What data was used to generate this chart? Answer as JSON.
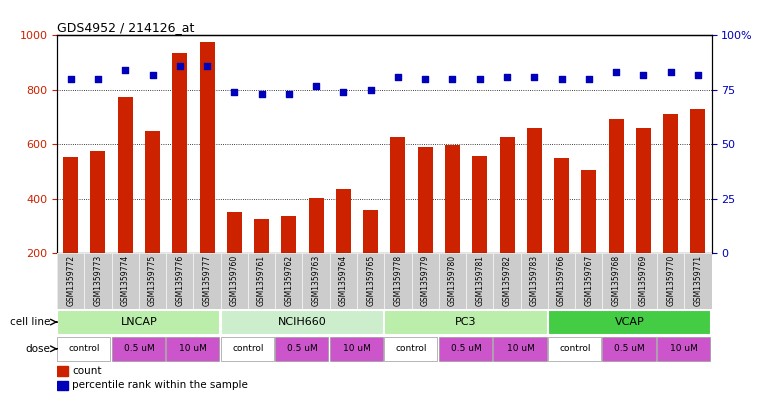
{
  "title": "GDS4952 / 214126_at",
  "samples": [
    "GSM1359772",
    "GSM1359773",
    "GSM1359774",
    "GSM1359775",
    "GSM1359776",
    "GSM1359777",
    "GSM1359760",
    "GSM1359761",
    "GSM1359762",
    "GSM1359763",
    "GSM1359764",
    "GSM1359765",
    "GSM1359778",
    "GSM1359779",
    "GSM1359780",
    "GSM1359781",
    "GSM1359782",
    "GSM1359783",
    "GSM1359766",
    "GSM1359767",
    "GSM1359768",
    "GSM1359769",
    "GSM1359770",
    "GSM1359771"
  ],
  "counts": [
    555,
    575,
    775,
    648,
    935,
    975,
    352,
    325,
    338,
    405,
    435,
    360,
    628,
    590,
    598,
    557,
    628,
    660,
    552,
    505,
    695,
    660,
    710,
    730
  ],
  "percentile_ranks": [
    80,
    80,
    84,
    82,
    86,
    86,
    74,
    73,
    73,
    77,
    74,
    75,
    81,
    80,
    80,
    80,
    81,
    81,
    80,
    80,
    83,
    82,
    83,
    82
  ],
  "cell_lines": [
    {
      "name": "LNCAP",
      "start": 0,
      "end": 6,
      "color": "#bbeeaa"
    },
    {
      "name": "NCIH660",
      "start": 6,
      "end": 12,
      "color": "#cceecc"
    },
    {
      "name": "PC3",
      "start": 12,
      "end": 18,
      "color": "#bbeeaa"
    },
    {
      "name": "VCAP",
      "start": 18,
      "end": 24,
      "color": "#44cc44"
    }
  ],
  "doses": [
    {
      "label": "control",
      "start": 0,
      "end": 2,
      "color": "#ffffff"
    },
    {
      "label": "0.5 uM",
      "start": 2,
      "end": 4,
      "color": "#dd77dd"
    },
    {
      "label": "10 uM",
      "start": 4,
      "end": 6,
      "color": "#dd77dd"
    },
    {
      "label": "control",
      "start": 6,
      "end": 8,
      "color": "#ffffff"
    },
    {
      "label": "0.5 uM",
      "start": 8,
      "end": 10,
      "color": "#dd77dd"
    },
    {
      "label": "10 uM",
      "start": 10,
      "end": 12,
      "color": "#dd77dd"
    },
    {
      "label": "control",
      "start": 12,
      "end": 14,
      "color": "#ffffff"
    },
    {
      "label": "0.5 uM",
      "start": 14,
      "end": 16,
      "color": "#dd77dd"
    },
    {
      "label": "10 uM",
      "start": 16,
      "end": 18,
      "color": "#dd77dd"
    },
    {
      "label": "control",
      "start": 18,
      "end": 20,
      "color": "#ffffff"
    },
    {
      "label": "0.5 uM",
      "start": 20,
      "end": 22,
      "color": "#dd77dd"
    },
    {
      "label": "10 uM",
      "start": 22,
      "end": 24,
      "color": "#dd77dd"
    }
  ],
  "dose_groups": [
    {
      "label": "control",
      "indices": [
        0,
        1
      ]
    },
    {
      "label": "0.5 uM",
      "indices": [
        2,
        3
      ]
    },
    {
      "label": "10 uM",
      "indices": [
        4,
        5
      ]
    },
    {
      "label": "control",
      "indices": [
        6,
        7
      ]
    },
    {
      "label": "0.5 uM",
      "indices": [
        8,
        9
      ]
    },
    {
      "label": "10 uM",
      "indices": [
        10,
        11
      ]
    },
    {
      "label": "control",
      "indices": [
        12,
        13
      ]
    },
    {
      "label": "0.5 uM",
      "indices": [
        14,
        15
      ]
    },
    {
      "label": "10 uM",
      "indices": [
        16,
        17
      ]
    },
    {
      "label": "control",
      "indices": [
        18,
        19
      ]
    },
    {
      "label": "0.5 uM",
      "indices": [
        20,
        21
      ]
    },
    {
      "label": "10 uM",
      "indices": [
        22,
        23
      ]
    }
  ],
  "bar_color": "#cc2200",
  "dot_color": "#0000bb",
  "ylim_left": [
    200,
    1000
  ],
  "ylim_right": [
    0,
    100
  ],
  "yticks_left": [
    200,
    400,
    600,
    800,
    1000
  ],
  "yticks_right": [
    0,
    25,
    50,
    75,
    100
  ],
  "grid_values": [
    400,
    600,
    800
  ],
  "label_bg_color": "#cccccc",
  "background_color": "#ffffff",
  "legend_count_color": "#cc2200",
  "legend_dot_color": "#0000bb",
  "bar_width": 0.55
}
